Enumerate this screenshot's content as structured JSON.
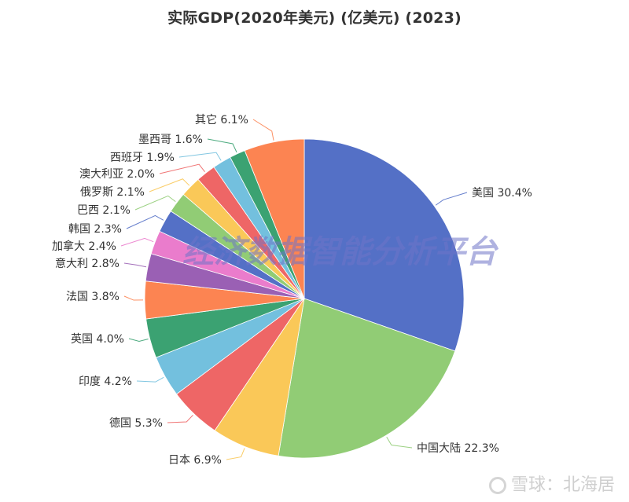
{
  "chart_data": {
    "type": "pie",
    "title": "实际GDP(2020年美元) (亿美元) (2023)",
    "start_angle": "12 o'clock, clockwise",
    "legend": "none (outside labels with leader lines)",
    "slices": [
      {
        "name": "美国",
        "value": 30.4,
        "label": "美国 30.4%",
        "color": "#5470c6"
      },
      {
        "name": "中国大陆",
        "value": 22.3,
        "label": "中国大陆 22.3%",
        "color": "#91cc75"
      },
      {
        "name": "日本",
        "value": 6.9,
        "label": "日本 6.9%",
        "color": "#fac858"
      },
      {
        "name": "德国",
        "value": 5.3,
        "label": "德国 5.3%",
        "color": "#ee6666"
      },
      {
        "name": "印度",
        "value": 4.2,
        "label": "印度 4.2%",
        "color": "#73c0de"
      },
      {
        "name": "英国",
        "value": 4.0,
        "label": "英国 4.0%",
        "color": "#3ba272"
      },
      {
        "name": "法国",
        "value": 3.8,
        "label": "法国 3.8%",
        "color": "#fc8452"
      },
      {
        "name": "意大利",
        "value": 2.8,
        "label": "意大利 2.8%",
        "color": "#9a60b4"
      },
      {
        "name": "加拿大",
        "value": 2.4,
        "label": "加拿大 2.4%",
        "color": "#ea7ccc"
      },
      {
        "name": "韩国",
        "value": 2.3,
        "label": "韩国 2.3%",
        "color": "#5470c6"
      },
      {
        "name": "巴西",
        "value": 2.1,
        "label": "巴西 2.1%",
        "color": "#91cc75"
      },
      {
        "name": "俄罗斯",
        "value": 2.1,
        "label": "俄罗斯 2.1%",
        "color": "#fac858"
      },
      {
        "name": "澳大利亚",
        "value": 2.0,
        "label": "澳大利亚 2.0%",
        "color": "#ee6666"
      },
      {
        "name": "西班牙",
        "value": 1.9,
        "label": "西班牙 1.9%",
        "color": "#73c0de"
      },
      {
        "name": "墨西哥",
        "value": 1.6,
        "label": "墨西哥 1.6%",
        "color": "#3ba272"
      },
      {
        "name": "其它",
        "value": 6.1,
        "label": "其它 6.1%",
        "color": "#fc8452"
      }
    ]
  },
  "watermark": "经济数据智能分析平台",
  "credit": "雪球：北海居"
}
